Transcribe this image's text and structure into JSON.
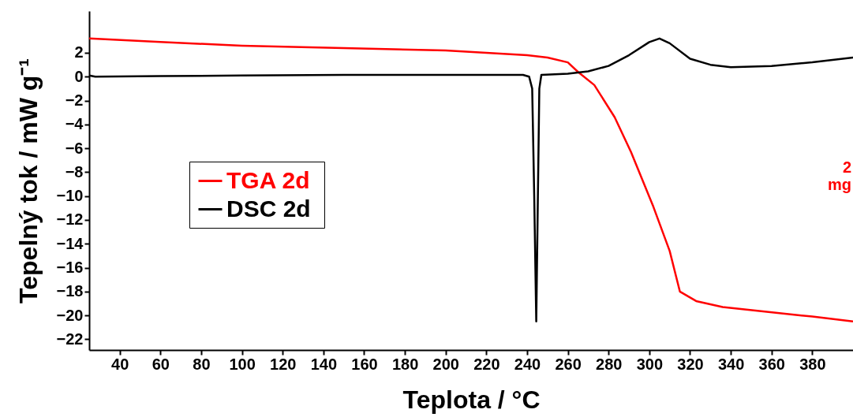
{
  "chart_data": {
    "type": "line",
    "xlabel": "Teplota / °C",
    "ylabel": "Tepelný tok / mW g⁻¹",
    "xlim": [
      25,
      400
    ],
    "ylim": [
      -22.9,
      5.5
    ],
    "xticks": [
      40,
      60,
      80,
      100,
      120,
      140,
      160,
      180,
      200,
      220,
      240,
      260,
      280,
      300,
      320,
      340,
      360,
      380
    ],
    "yticks": [
      -22,
      -20,
      -18,
      -16,
      -14,
      -12,
      -10,
      -8,
      -6,
      -4,
      -2,
      0,
      2
    ],
    "grid": false,
    "legend": "left",
    "marker": "none",
    "line_style": "solid",
    "annotations": [
      "2 mg"
    ],
    "series": [
      {
        "name": "TGA  2d",
        "color": "#ff0000",
        "x": [
          25,
          60,
          100,
          150,
          200,
          220,
          240,
          250,
          260,
          265,
          273,
          283,
          291,
          302,
          310,
          315,
          323,
          336,
          363,
          380,
          400
        ],
        "values": [
          3.2,
          2.9,
          2.6,
          2.4,
          2.2,
          2.0,
          1.8,
          1.6,
          1.2,
          0.4,
          -0.7,
          -3.4,
          -6.3,
          -10.9,
          -14.6,
          -18.0,
          -18.8,
          -19.3,
          -19.8,
          -20.1,
          -20.5
        ]
      },
      {
        "name": "DSC  2d",
        "color": "#000000",
        "x": [
          25,
          28,
          60,
          100,
          150,
          200,
          238,
          241,
          242.5,
          243.5,
          244.5,
          245.3,
          246,
          247,
          260,
          270,
          280,
          290,
          300,
          305,
          310,
          320,
          330,
          340,
          360,
          380,
          400
        ],
        "values": [
          0.1,
          0.0,
          0.05,
          0.1,
          0.15,
          0.15,
          0.15,
          0.0,
          -1,
          -10,
          -20.5,
          -10,
          -1,
          0.15,
          0.25,
          0.45,
          0.9,
          1.8,
          2.9,
          3.2,
          2.8,
          1.5,
          1.0,
          0.8,
          0.9,
          1.2,
          1.6
        ]
      }
    ]
  }
}
